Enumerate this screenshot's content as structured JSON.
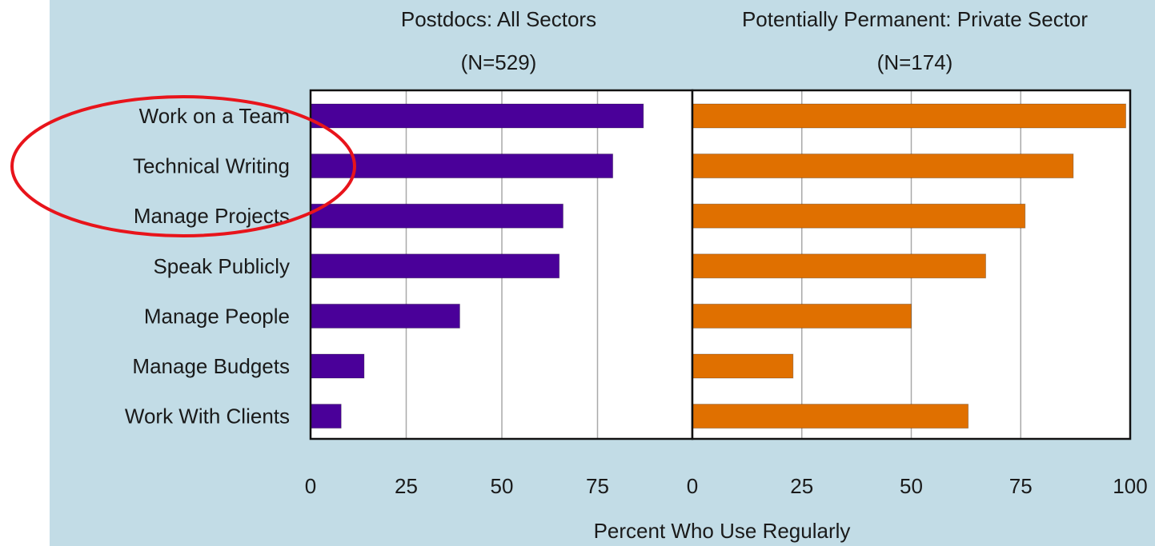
{
  "colors": {
    "background": "#c2dce6",
    "plot_background": "#ffffff",
    "grid": "#a9a9a9",
    "postdocs_bar": "#4a0099",
    "private_bar": "#e07000",
    "annotation_ellipse": "#e8141b"
  },
  "chart_data": [
    {
      "type": "bar",
      "orientation": "horizontal",
      "title": "Postdocs: All Sectors",
      "subtitle": "(N=529)",
      "categories": [
        "Work on a Team",
        "Technical Writing",
        "Manage Projects",
        "Speak Publicly",
        "Manage People",
        "Manage Budgets",
        "Work With Clients"
      ],
      "values": [
        87,
        79,
        66,
        65,
        39,
        14,
        8
      ],
      "xlim": [
        0,
        100
      ],
      "xticks": [
        "0",
        "25",
        "50",
        "75"
      ],
      "grid": true
    },
    {
      "type": "bar",
      "orientation": "horizontal",
      "title": "Potentially Permanent: Private Sector",
      "subtitle": "(N=174)",
      "categories": [
        "Work on a Team",
        "Technical Writing",
        "Manage Projects",
        "Speak Publicly",
        "Manage People",
        "Manage Budgets",
        "Work With Clients"
      ],
      "values": [
        99,
        87,
        76,
        67,
        50,
        23,
        63
      ],
      "xlim": [
        0,
        100
      ],
      "xticks": [
        "0",
        "25",
        "50",
        "75",
        "100"
      ],
      "grid": true
    }
  ],
  "xlabel": "Percent Who Use Regularly",
  "annotation": {
    "shape": "ellipse",
    "highlights": [
      "Work on a Team",
      "Technical Writing",
      "Manage Projects"
    ]
  }
}
